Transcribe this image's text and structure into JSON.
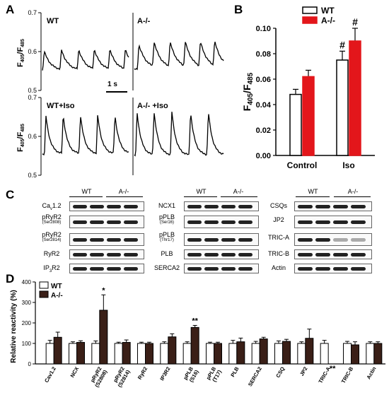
{
  "panel_labels": {
    "a": "A",
    "b": "B",
    "c": "C",
    "d": "D"
  },
  "panelA": {
    "traces": [
      "WT",
      "A-/-",
      "WT+Iso",
      "A-/- +Iso"
    ],
    "ylabel_main": "F",
    "ylabel_sub1": "405",
    "ylabel_sep": "/F",
    "ylabel_sub2": "485",
    "y_ticks": [
      "0.7",
      "0.6",
      "0.5"
    ],
    "scale_bar": "1 s"
  },
  "panelC": {
    "groups": [
      "WT",
      "A-/-"
    ],
    "blot1": [
      {
        "main": "Ca",
        "sub": "v",
        "tail": "1.2",
        "site": ""
      },
      {
        "main": "pRyR2",
        "sub": "",
        "tail": "",
        "site": "(Ser2808)"
      },
      {
        "main": "pRyR2",
        "sub": "",
        "tail": "",
        "site": "(Ser2814)"
      },
      {
        "main": "RyR2",
        "sub": "",
        "tail": "",
        "site": ""
      },
      {
        "main": "IP",
        "sub": "3",
        "tail": "R2",
        "site": ""
      }
    ],
    "blot2": [
      {
        "main": "NCX1",
        "site": ""
      },
      {
        "main": "pPLB",
        "site": "(Ser16)"
      },
      {
        "main": "pPLB",
        "site": "(Thr17)"
      },
      {
        "main": "PLB",
        "site": ""
      },
      {
        "main": "SERCA2",
        "site": ""
      }
    ],
    "blot3": [
      "CSQs",
      "JP2",
      "TRIC-A",
      "TRIC-B",
      "Actin"
    ]
  },
  "chart_data": [
    {
      "type": "bar",
      "panel": "B",
      "categories": [
        "Control",
        "Iso"
      ],
      "series": [
        {
          "name": "WT",
          "values": [
            0.048,
            0.075
          ],
          "errors": [
            0.004,
            0.007
          ],
          "color": "#ffffff"
        },
        {
          "name": "A-/-",
          "values": [
            0.062,
            0.09
          ],
          "errors": [
            0.005,
            0.01
          ],
          "color": "#e3161b"
        }
      ],
      "annotations": [
        "#",
        "#"
      ],
      "ylabel": "F405/F485",
      "ylabel_main": "F",
      "ylabel_sub1": "405",
      "ylabel_sep": "/F",
      "ylabel_sub2": "485",
      "ylim": [
        0.0,
        0.1
      ],
      "yticks": [
        "0.00",
        "0.02",
        "0.04",
        "0.06",
        "0.08",
        "0.10"
      ],
      "legend_position": "top-right"
    },
    {
      "type": "bar",
      "panel": "D",
      "categories": [
        "Cav1.2",
        "NCX",
        "pRyR2 (S2808)",
        "pRyR2 (S2814)",
        "RyR2",
        "IP3R2",
        "pPLB (S16)",
        "pPLB (T17)",
        "PLB",
        "SERCA2",
        "CSQ",
        "JP2",
        "TRIC-A",
        "TRIC-B",
        "Actin"
      ],
      "tick_labels": [
        [
          "Cav1.2"
        ],
        [
          "NCX"
        ],
        [
          "pRyR2",
          "(S2808)"
        ],
        [
          "pRyR2",
          "(S2814)"
        ],
        [
          "RyR2"
        ],
        [
          "IP3R2"
        ],
        [
          "pPLB",
          "(S16)"
        ],
        [
          "pPLB",
          "(T17)"
        ],
        [
          "PLB"
        ],
        [
          "SERCA2"
        ],
        [
          "CSQ"
        ],
        [
          "JP2"
        ],
        [
          "TRIC-A"
        ],
        [
          "TRIC-B"
        ],
        [
          "Actin"
        ]
      ],
      "series": [
        {
          "name": "WT",
          "values": [
            100,
            100,
            100,
            100,
            100,
            100,
            100,
            100,
            100,
            100,
            100,
            100,
            100,
            100,
            100
          ],
          "errors": [
            15,
            8,
            12,
            6,
            6,
            8,
            8,
            6,
            15,
            10,
            12,
            8,
            15,
            10,
            8
          ],
          "color": "#ffffff"
        },
        {
          "name": "A-/-",
          "values": [
            130,
            105,
            262,
            105,
            100,
            132,
            178,
            100,
            108,
            122,
            110,
            125,
            0,
            93,
            100
          ],
          "errors": [
            25,
            8,
            75,
            12,
            6,
            15,
            10,
            6,
            18,
            8,
            10,
            45,
            0,
            15,
            8
          ],
          "color": "#3a1f17"
        }
      ],
      "annotations": [
        {
          "category": "pRyR2 (S2808)",
          "text": "*"
        },
        {
          "category": "pPLB (S16)",
          "text": "**"
        },
        {
          "category": "TRIC-A",
          "text": "**"
        }
      ],
      "ylabel": "Relative reactivity (%)",
      "ylim": [
        0,
        400
      ],
      "yticks": [
        "0",
        "100",
        "200",
        "300",
        "400"
      ],
      "legend_position": "top-left"
    }
  ]
}
